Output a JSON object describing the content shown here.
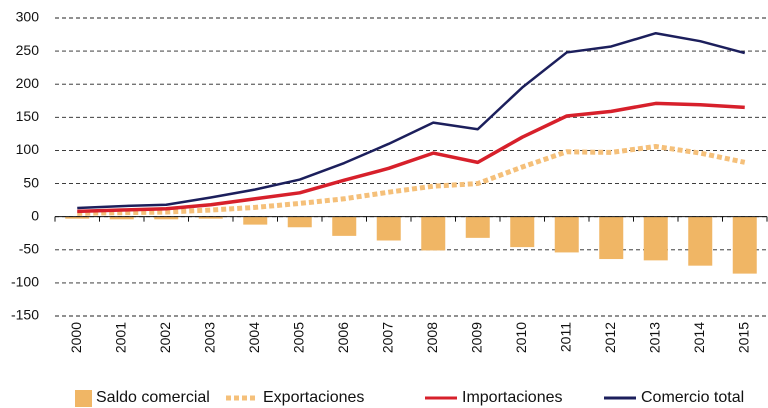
{
  "chart_data": {
    "type": "combo",
    "categories": [
      "2000",
      "2001",
      "2002",
      "2003",
      "2004",
      "2005",
      "2006",
      "2007",
      "2008",
      "2009",
      "2010",
      "2011",
      "2012",
      "2013",
      "2014",
      "2015"
    ],
    "series": [
      {
        "name": "Saldo comercial",
        "type": "bar",
        "color": "#f0b665",
        "values": [
          -3,
          -4,
          -4,
          -3,
          -12,
          -16,
          -29,
          -36,
          -51,
          -32,
          -46,
          -54,
          -64,
          -66,
          -74,
          -86
        ]
      },
      {
        "name": "Exportaciones",
        "type": "line",
        "dashed": true,
        "color": "#f5c07a",
        "values": [
          5,
          6,
          7,
          10,
          14,
          20,
          27,
          37,
          46,
          50,
          75,
          98,
          97,
          106,
          96,
          82
        ]
      },
      {
        "name": "Importaciones",
        "type": "line",
        "color": "#d7202b",
        "values": [
          8,
          10,
          12,
          18,
          27,
          36,
          55,
          73,
          96,
          82,
          120,
          152,
          159,
          171,
          169,
          165
        ]
      },
      {
        "name": "Comercio total",
        "type": "line",
        "color": "#1c1f5c",
        "values": [
          13,
          16,
          18,
          29,
          41,
          56,
          81,
          110,
          142,
          132,
          195,
          248,
          257,
          277,
          265,
          247
        ]
      }
    ],
    "ylim": [
      -150,
      300
    ],
    "yticks": [
      -150,
      -100,
      -50,
      0,
      50,
      100,
      150,
      200,
      250,
      300
    ],
    "grid": true,
    "legend": "bottom"
  }
}
